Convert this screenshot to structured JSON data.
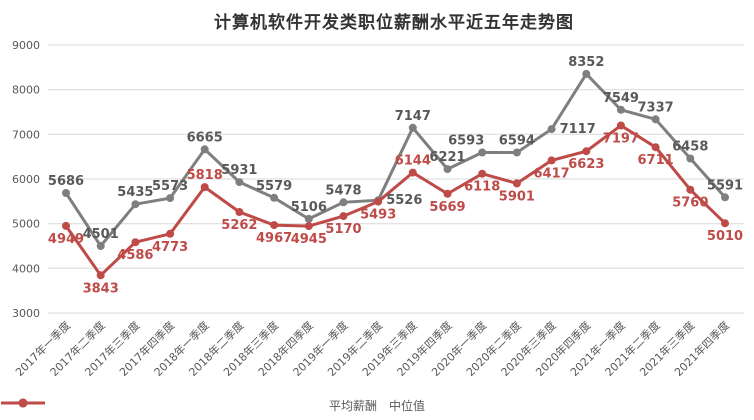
{
  "chart_data": {
    "type": "line",
    "title": "计算机软件开发类职位薪酬水平近五年走势图",
    "categories": [
      "2017年一季度",
      "2017年二季度",
      "2017年三季度",
      "2017年四季度",
      "2018年一季度",
      "2018年二季度",
      "2018年三季度",
      "2018年四季度",
      "2019年一季度",
      "2019年二季度",
      "2019年三季度",
      "2019年四季度",
      "2020年一季度",
      "2020年二季度",
      "2020年三季度",
      "2020年四季度",
      "2021年一季度",
      "2021年二季度",
      "2021年三季度",
      "2021年四季度"
    ],
    "series": [
      {
        "id": "average-salary",
        "name": "平均薪酬",
        "color": "#7F7F7F",
        "label_color": "#595959",
        "values": [
          5686,
          4501,
          5435,
          5573,
          6665,
          5931,
          5579,
          5106,
          5478,
          5526,
          7147,
          6221,
          6593,
          6594,
          7117,
          8352,
          7549,
          7337,
          6458,
          5591
        ],
        "label_sides": [
          "above",
          "above",
          "above",
          "above",
          "above",
          "above",
          "above",
          "above",
          "above",
          "right",
          "above",
          "above",
          "above-left",
          "above",
          "right",
          "above",
          "above",
          "above",
          "above",
          "above"
        ]
      },
      {
        "id": "median",
        "name": "中位值",
        "color": "#BE4B48",
        "label_color": "#BE4B48",
        "values": [
          4949,
          3843,
          4586,
          4773,
          5818,
          5262,
          4967,
          4945,
          5170,
          5493,
          6144,
          5669,
          6118,
          5901,
          6417,
          6623,
          7197,
          6711,
          5760,
          5010
        ],
        "label_sides": [
          "below",
          "below",
          "below",
          "below",
          "above",
          "below",
          "below",
          "below",
          "below",
          "below",
          "above",
          "below",
          "below",
          "below",
          "below",
          "below",
          "below",
          "below",
          "below",
          "below"
        ]
      }
    ],
    "ylim": [
      3000,
      9000
    ],
    "ytick_interval": 1000,
    "grid": true,
    "grid_color": "#D9D9D9",
    "axis_label_color": "#595959",
    "legend_position": "bottom"
  }
}
